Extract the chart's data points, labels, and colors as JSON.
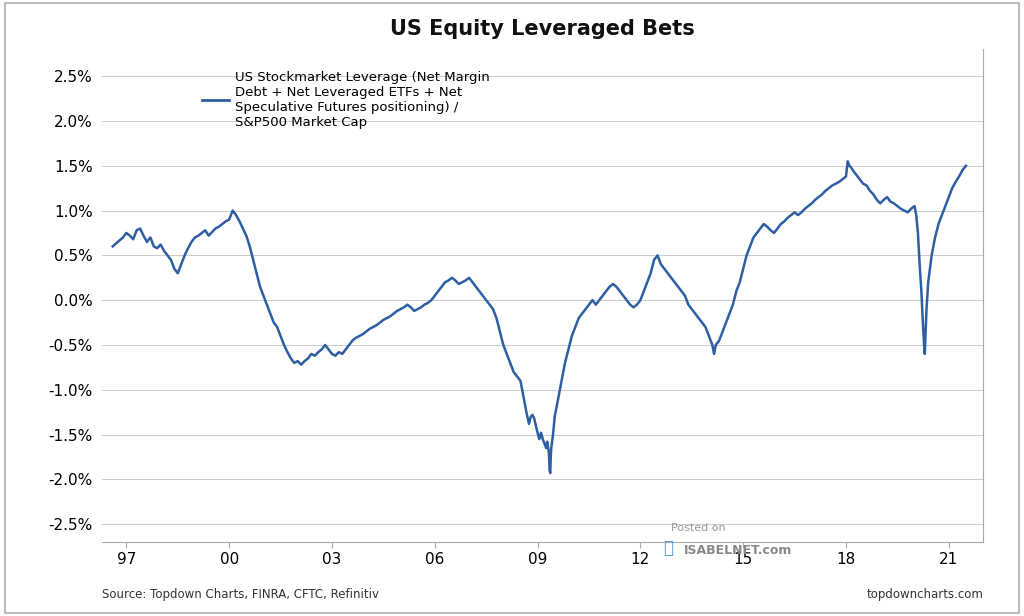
{
  "title": "US Equity Leveraged Bets",
  "legend_label": "US Stockmarket Leverage (Net Margin\nDebt + Net Leveraged ETFs + Net\nSpeculative Futures positioning) /\nS&P500 Market Cap",
  "source_text": "Source: Topdown Charts, FINRA, CFTC, Refinitiv",
  "watermark_line1": "Posted on",
  "watermark_line2": "ISABELNET.com",
  "credit_text": "topdowncharts.com",
  "line_color": "#2E5FA3",
  "background_color": "#FFFFFF",
  "ylim": [
    -0.027,
    0.028
  ],
  "yticks": [
    -0.025,
    -0.02,
    -0.015,
    -0.01,
    -0.005,
    0.0,
    0.005,
    0.01,
    0.015,
    0.02,
    0.025
  ],
  "xtick_labels": [
    "97",
    "00",
    "03",
    "06",
    "09",
    "12",
    "15",
    "18",
    "21"
  ],
  "xtick_positions": [
    1997,
    2000,
    2003,
    2006,
    2009,
    2012,
    2015,
    2018,
    2021
  ],
  "xlim": [
    1996.3,
    2022.0
  ],
  "time_series": [
    [
      1996.6,
      0.006
    ],
    [
      1996.75,
      0.0065
    ],
    [
      1996.9,
      0.007
    ],
    [
      1997.0,
      0.0075
    ],
    [
      1997.1,
      0.0072
    ],
    [
      1997.2,
      0.0068
    ],
    [
      1997.3,
      0.0078
    ],
    [
      1997.4,
      0.008
    ],
    [
      1997.5,
      0.0072
    ],
    [
      1997.6,
      0.0065
    ],
    [
      1997.7,
      0.007
    ],
    [
      1997.8,
      0.006
    ],
    [
      1997.9,
      0.0058
    ],
    [
      1998.0,
      0.0062
    ],
    [
      1998.1,
      0.0055
    ],
    [
      1998.2,
      0.005
    ],
    [
      1998.3,
      0.0045
    ],
    [
      1998.4,
      0.0035
    ],
    [
      1998.5,
      0.003
    ],
    [
      1998.6,
      0.004
    ],
    [
      1998.7,
      0.005
    ],
    [
      1998.8,
      0.0058
    ],
    [
      1998.9,
      0.0065
    ],
    [
      1999.0,
      0.007
    ],
    [
      1999.1,
      0.0072
    ],
    [
      1999.2,
      0.0075
    ],
    [
      1999.3,
      0.0078
    ],
    [
      1999.4,
      0.0072
    ],
    [
      1999.5,
      0.0076
    ],
    [
      1999.6,
      0.008
    ],
    [
      1999.7,
      0.0082
    ],
    [
      1999.8,
      0.0085
    ],
    [
      1999.9,
      0.0088
    ],
    [
      2000.0,
      0.009
    ],
    [
      2000.1,
      0.01
    ],
    [
      2000.2,
      0.0095
    ],
    [
      2000.3,
      0.0088
    ],
    [
      2000.4,
      0.008
    ],
    [
      2000.5,
      0.0072
    ],
    [
      2000.6,
      0.006
    ],
    [
      2000.7,
      0.0045
    ],
    [
      2000.8,
      0.003
    ],
    [
      2000.9,
      0.0015
    ],
    [
      2001.0,
      0.0005
    ],
    [
      2001.1,
      -0.0005
    ],
    [
      2001.2,
      -0.0015
    ],
    [
      2001.3,
      -0.0025
    ],
    [
      2001.4,
      -0.003
    ],
    [
      2001.5,
      -0.004
    ],
    [
      2001.6,
      -0.005
    ],
    [
      2001.7,
      -0.0058
    ],
    [
      2001.8,
      -0.0065
    ],
    [
      2001.9,
      -0.007
    ],
    [
      2002.0,
      -0.0068
    ],
    [
      2002.1,
      -0.0072
    ],
    [
      2002.2,
      -0.0068
    ],
    [
      2002.3,
      -0.0065
    ],
    [
      2002.4,
      -0.006
    ],
    [
      2002.5,
      -0.0062
    ],
    [
      2002.6,
      -0.0058
    ],
    [
      2002.7,
      -0.0055
    ],
    [
      2002.8,
      -0.005
    ],
    [
      2002.9,
      -0.0055
    ],
    [
      2003.0,
      -0.006
    ],
    [
      2003.1,
      -0.0062
    ],
    [
      2003.2,
      -0.0058
    ],
    [
      2003.3,
      -0.006
    ],
    [
      2003.4,
      -0.0055
    ],
    [
      2003.5,
      -0.005
    ],
    [
      2003.6,
      -0.0045
    ],
    [
      2003.7,
      -0.0042
    ],
    [
      2003.8,
      -0.004
    ],
    [
      2003.9,
      -0.0038
    ],
    [
      2004.0,
      -0.0035
    ],
    [
      2004.1,
      -0.0032
    ],
    [
      2004.2,
      -0.003
    ],
    [
      2004.3,
      -0.0028
    ],
    [
      2004.4,
      -0.0025
    ],
    [
      2004.5,
      -0.0022
    ],
    [
      2004.6,
      -0.002
    ],
    [
      2004.7,
      -0.0018
    ],
    [
      2004.8,
      -0.0015
    ],
    [
      2004.9,
      -0.0012
    ],
    [
      2005.0,
      -0.001
    ],
    [
      2005.1,
      -0.0008
    ],
    [
      2005.2,
      -0.0005
    ],
    [
      2005.3,
      -0.0008
    ],
    [
      2005.4,
      -0.0012
    ],
    [
      2005.5,
      -0.001
    ],
    [
      2005.6,
      -0.0008
    ],
    [
      2005.7,
      -0.0005
    ],
    [
      2005.8,
      -0.0003
    ],
    [
      2005.9,
      0.0
    ],
    [
      2006.0,
      0.0005
    ],
    [
      2006.1,
      0.001
    ],
    [
      2006.2,
      0.0015
    ],
    [
      2006.3,
      0.002
    ],
    [
      2006.4,
      0.0022
    ],
    [
      2006.5,
      0.0025
    ],
    [
      2006.6,
      0.0022
    ],
    [
      2006.7,
      0.0018
    ],
    [
      2006.8,
      0.002
    ],
    [
      2006.9,
      0.0022
    ],
    [
      2007.0,
      0.0025
    ],
    [
      2007.1,
      0.002
    ],
    [
      2007.2,
      0.0015
    ],
    [
      2007.3,
      0.001
    ],
    [
      2007.4,
      0.0005
    ],
    [
      2007.5,
      0.0
    ],
    [
      2007.6,
      -0.0005
    ],
    [
      2007.7,
      -0.001
    ],
    [
      2007.8,
      -0.002
    ],
    [
      2007.9,
      -0.0035
    ],
    [
      2008.0,
      -0.005
    ],
    [
      2008.1,
      -0.006
    ],
    [
      2008.2,
      -0.007
    ],
    [
      2008.3,
      -0.008
    ],
    [
      2008.4,
      -0.0085
    ],
    [
      2008.5,
      -0.009
    ],
    [
      2008.55,
      -0.01
    ],
    [
      2008.6,
      -0.011
    ],
    [
      2008.65,
      -0.012
    ],
    [
      2008.7,
      -0.013
    ],
    [
      2008.75,
      -0.0138
    ],
    [
      2008.8,
      -0.013
    ],
    [
      2008.85,
      -0.0128
    ],
    [
      2008.9,
      -0.0132
    ],
    [
      2008.95,
      -0.014
    ],
    [
      2009.0,
      -0.0148
    ],
    [
      2009.05,
      -0.0155
    ],
    [
      2009.1,
      -0.0148
    ],
    [
      2009.15,
      -0.0155
    ],
    [
      2009.2,
      -0.016
    ],
    [
      2009.25,
      -0.0165
    ],
    [
      2009.28,
      -0.0158
    ],
    [
      2009.3,
      -0.0163
    ],
    [
      2009.33,
      -0.017
    ],
    [
      2009.35,
      -0.019
    ],
    [
      2009.37,
      -0.0193
    ],
    [
      2009.38,
      -0.018
    ],
    [
      2009.39,
      -0.017
    ],
    [
      2009.4,
      -0.0165
    ],
    [
      2009.45,
      -0.015
    ],
    [
      2009.5,
      -0.013
    ],
    [
      2009.6,
      -0.011
    ],
    [
      2009.7,
      -0.009
    ],
    [
      2009.8,
      -0.007
    ],
    [
      2009.9,
      -0.0055
    ],
    [
      2010.0,
      -0.004
    ],
    [
      2010.1,
      -0.003
    ],
    [
      2010.2,
      -0.002
    ],
    [
      2010.3,
      -0.0015
    ],
    [
      2010.4,
      -0.001
    ],
    [
      2010.5,
      -0.0005
    ],
    [
      2010.6,
      0.0
    ],
    [
      2010.7,
      -0.0005
    ],
    [
      2010.8,
      0.0
    ],
    [
      2010.9,
      0.0005
    ],
    [
      2011.0,
      0.001
    ],
    [
      2011.1,
      0.0015
    ],
    [
      2011.2,
      0.0018
    ],
    [
      2011.3,
      0.0015
    ],
    [
      2011.4,
      0.001
    ],
    [
      2011.5,
      0.0005
    ],
    [
      2011.6,
      0.0
    ],
    [
      2011.7,
      -0.0005
    ],
    [
      2011.8,
      -0.0008
    ],
    [
      2011.9,
      -0.0005
    ],
    [
      2012.0,
      0.0
    ],
    [
      2012.1,
      0.001
    ],
    [
      2012.2,
      0.002
    ],
    [
      2012.3,
      0.003
    ],
    [
      2012.4,
      0.0045
    ],
    [
      2012.5,
      0.005
    ],
    [
      2012.6,
      0.004
    ],
    [
      2012.7,
      0.0035
    ],
    [
      2012.8,
      0.003
    ],
    [
      2012.9,
      0.0025
    ],
    [
      2013.0,
      0.002
    ],
    [
      2013.1,
      0.0015
    ],
    [
      2013.2,
      0.001
    ],
    [
      2013.3,
      0.0005
    ],
    [
      2013.4,
      -0.0005
    ],
    [
      2013.5,
      -0.001
    ],
    [
      2013.6,
      -0.0015
    ],
    [
      2013.7,
      -0.002
    ],
    [
      2013.8,
      -0.0025
    ],
    [
      2013.9,
      -0.003
    ],
    [
      2014.0,
      -0.004
    ],
    [
      2014.1,
      -0.005
    ],
    [
      2014.15,
      -0.006
    ],
    [
      2014.2,
      -0.005
    ],
    [
      2014.3,
      -0.0045
    ],
    [
      2014.4,
      -0.0035
    ],
    [
      2014.5,
      -0.0025
    ],
    [
      2014.6,
      -0.0015
    ],
    [
      2014.7,
      -0.0005
    ],
    [
      2014.8,
      0.001
    ],
    [
      2014.9,
      0.002
    ],
    [
      2015.0,
      0.0035
    ],
    [
      2015.1,
      0.005
    ],
    [
      2015.2,
      0.006
    ],
    [
      2015.3,
      0.007
    ],
    [
      2015.4,
      0.0075
    ],
    [
      2015.5,
      0.008
    ],
    [
      2015.6,
      0.0085
    ],
    [
      2015.7,
      0.0082
    ],
    [
      2015.8,
      0.0078
    ],
    [
      2015.9,
      0.0075
    ],
    [
      2016.0,
      0.008
    ],
    [
      2016.1,
      0.0085
    ],
    [
      2016.2,
      0.0088
    ],
    [
      2016.3,
      0.0092
    ],
    [
      2016.4,
      0.0095
    ],
    [
      2016.5,
      0.0098
    ],
    [
      2016.6,
      0.0095
    ],
    [
      2016.7,
      0.0098
    ],
    [
      2016.8,
      0.0102
    ],
    [
      2016.9,
      0.0105
    ],
    [
      2017.0,
      0.0108
    ],
    [
      2017.1,
      0.0112
    ],
    [
      2017.2,
      0.0115
    ],
    [
      2017.3,
      0.0118
    ],
    [
      2017.4,
      0.0122
    ],
    [
      2017.5,
      0.0125
    ],
    [
      2017.6,
      0.0128
    ],
    [
      2017.7,
      0.013
    ],
    [
      2017.8,
      0.0132
    ],
    [
      2017.9,
      0.0135
    ],
    [
      2018.0,
      0.0138
    ],
    [
      2018.05,
      0.0155
    ],
    [
      2018.1,
      0.015
    ],
    [
      2018.15,
      0.0148
    ],
    [
      2018.2,
      0.0145
    ],
    [
      2018.3,
      0.014
    ],
    [
      2018.4,
      0.0135
    ],
    [
      2018.5,
      0.013
    ],
    [
      2018.6,
      0.0128
    ],
    [
      2018.7,
      0.0122
    ],
    [
      2018.8,
      0.0118
    ],
    [
      2018.9,
      0.0112
    ],
    [
      2019.0,
      0.0108
    ],
    [
      2019.1,
      0.0112
    ],
    [
      2019.2,
      0.0115
    ],
    [
      2019.3,
      0.011
    ],
    [
      2019.4,
      0.0108
    ],
    [
      2019.5,
      0.0105
    ],
    [
      2019.6,
      0.0102
    ],
    [
      2019.7,
      0.01
    ],
    [
      2019.8,
      0.0098
    ],
    [
      2019.9,
      0.0102
    ],
    [
      2020.0,
      0.0105
    ],
    [
      2020.05,
      0.0095
    ],
    [
      2020.1,
      0.0075
    ],
    [
      2020.15,
      0.004
    ],
    [
      2020.2,
      0.001
    ],
    [
      2020.25,
      -0.003
    ],
    [
      2020.28,
      -0.005
    ],
    [
      2020.3,
      -0.006
    ],
    [
      2020.32,
      -0.004
    ],
    [
      2020.35,
      -0.001
    ],
    [
      2020.4,
      0.002
    ],
    [
      2020.5,
      0.005
    ],
    [
      2020.6,
      0.007
    ],
    [
      2020.7,
      0.0085
    ],
    [
      2020.8,
      0.0095
    ],
    [
      2020.9,
      0.0105
    ],
    [
      2021.0,
      0.0115
    ],
    [
      2021.1,
      0.0125
    ],
    [
      2021.2,
      0.0132
    ],
    [
      2021.3,
      0.0138
    ],
    [
      2021.4,
      0.0145
    ],
    [
      2021.5,
      0.015
    ]
  ]
}
